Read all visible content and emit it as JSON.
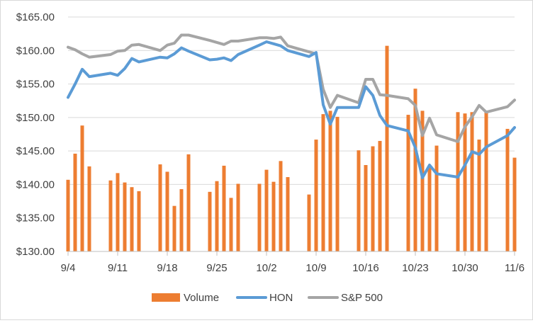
{
  "chart_data": {
    "type": "bar+line",
    "title": "",
    "xlabel": "",
    "ylabel": "",
    "ylim": [
      130,
      165
    ],
    "y_ticks": [
      "$130.00",
      "$135.00",
      "$140.00",
      "$145.00",
      "$150.00",
      "$155.00",
      "$160.00",
      "$165.00"
    ],
    "x_ticks": [
      "9/4",
      "9/11",
      "9/18",
      "9/25",
      "10/2",
      "10/9",
      "10/16",
      "10/23",
      "10/30",
      "11/6"
    ],
    "grid": "horizontal",
    "legend_position": "bottom",
    "x_dates": [
      "9/4",
      "9/5",
      "9/6",
      "9/7",
      "9/10",
      "9/11",
      "9/12",
      "9/13",
      "9/14",
      "9/17",
      "9/18",
      "9/19",
      "9/20",
      "9/21",
      "9/24",
      "9/25",
      "9/26",
      "9/27",
      "9/28",
      "10/1",
      "10/2",
      "10/3",
      "10/4",
      "10/5",
      "10/8",
      "10/9",
      "10/10",
      "10/11",
      "10/12",
      "10/15",
      "10/16",
      "10/17",
      "10/18",
      "10/19",
      "10/22",
      "10/23",
      "10/24",
      "10/25",
      "10/26",
      "10/29",
      "10/30",
      "10/31",
      "11/1",
      "11/2",
      "11/5",
      "11/6"
    ],
    "series": [
      {
        "name": "Volume",
        "kind": "bar",
        "color": "#ed7d31",
        "values": [
          140.7,
          144.6,
          148.8,
          142.7,
          140.6,
          141.7,
          140.3,
          139.6,
          139.0,
          143.0,
          141.9,
          136.8,
          139.3,
          144.5,
          138.9,
          140.5,
          142.8,
          138.0,
          140.1,
          140.1,
          142.2,
          140.4,
          143.5,
          141.1,
          138.5,
          146.7,
          150.5,
          151.0,
          150.1,
          145.1,
          142.9,
          145.7,
          146.5,
          160.7,
          150.4,
          154.3,
          151.0,
          142.7,
          145.8,
          150.8,
          150.6,
          150.8,
          146.7,
          150.8,
          148.3,
          144.0
        ]
      },
      {
        "name": "HON",
        "kind": "line",
        "color": "#5b9bd5",
        "values": [
          153.0,
          155.0,
          157.2,
          156.1,
          156.6,
          156.3,
          157.3,
          158.8,
          158.3,
          159.0,
          158.9,
          159.5,
          160.4,
          159.9,
          158.6,
          158.7,
          158.9,
          158.5,
          159.4,
          160.8,
          161.3,
          161.0,
          160.7,
          160.0,
          159.1,
          159.7,
          151.9,
          149.0,
          151.5,
          151.5,
          154.6,
          153.3,
          150.3,
          148.8,
          148.0,
          145.5,
          141.0,
          142.9,
          141.6,
          141.1,
          142.9,
          144.9,
          144.5,
          145.6,
          147.3,
          148.5
        ]
      },
      {
        "name": "S&P 500",
        "kind": "line",
        "color": "#a5a5a5",
        "values": [
          160.5,
          160.1,
          159.5,
          159.0,
          159.4,
          159.9,
          160.0,
          160.8,
          160.9,
          160.0,
          160.8,
          161.1,
          162.3,
          162.3,
          161.5,
          161.2,
          160.9,
          161.4,
          161.4,
          161.9,
          161.9,
          161.8,
          162.0,
          160.7,
          159.8,
          159.5,
          154.2,
          151.5,
          153.3,
          152.2,
          155.7,
          155.7,
          153.4,
          153.3,
          152.8,
          151.8,
          147.3,
          149.9,
          147.4,
          146.4,
          148.6,
          150.1,
          151.8,
          150.8,
          151.6,
          152.6
        ]
      }
    ]
  }
}
